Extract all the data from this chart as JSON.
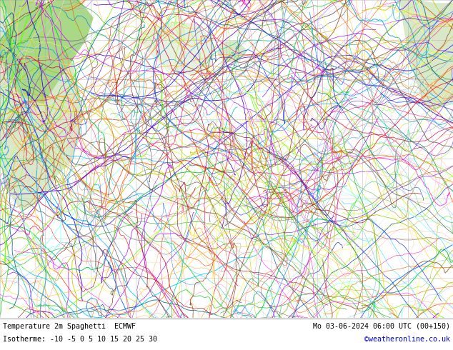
{
  "title_line1": "Temperature 2m Spaghetti  ECMWF",
  "title_line2": "Mo 03-06-2024 06:00 UTC (00+150)",
  "isotherme_label": "Isotherme: -10 -5 0 5 10 15 20 25 30",
  "credit": "©weatheronline.co.uk",
  "bg_color": "#ffffff",
  "map_ocean_color": "#f0f0f0",
  "map_land_color": "#d8e8c8",
  "map_land_color2": "#b8d0a0",
  "title_color": "#000000",
  "credit_color": "#0000cc",
  "grid_color": "#aaaaaa",
  "bottom_bg": "#e8f0ff",
  "figsize": [
    6.34,
    4.9
  ],
  "dpi": 100,
  "n_lines": 51,
  "line_colors": [
    "#808080",
    "#808080",
    "#808080",
    "#808080",
    "#808080",
    "#808080",
    "#808080",
    "#808080",
    "#808080",
    "#808080",
    "#ff0000",
    "#ff6600",
    "#ff9900",
    "#ffcc00",
    "#cccc00",
    "#00aa00",
    "#00cc66",
    "#00cccc",
    "#00aaff",
    "#0066ff",
    "#0000ff",
    "#6600cc",
    "#9900ff",
    "#ff00ff",
    "#cc0066",
    "#ff99cc",
    "#ff6699",
    "#cc3333",
    "#993300",
    "#663300",
    "#336600",
    "#009900",
    "#33cc33",
    "#99ff00",
    "#ccff66",
    "#ffff00",
    "#ffcc66",
    "#ff9966",
    "#cc6633",
    "#996699",
    "#6699cc",
    "#33ccff",
    "#66ffff",
    "#99ffcc",
    "#ccffcc",
    "#ffccff",
    "#cc99ff",
    "#9966ff",
    "#6633ff",
    "#3300cc",
    "#000066"
  ]
}
